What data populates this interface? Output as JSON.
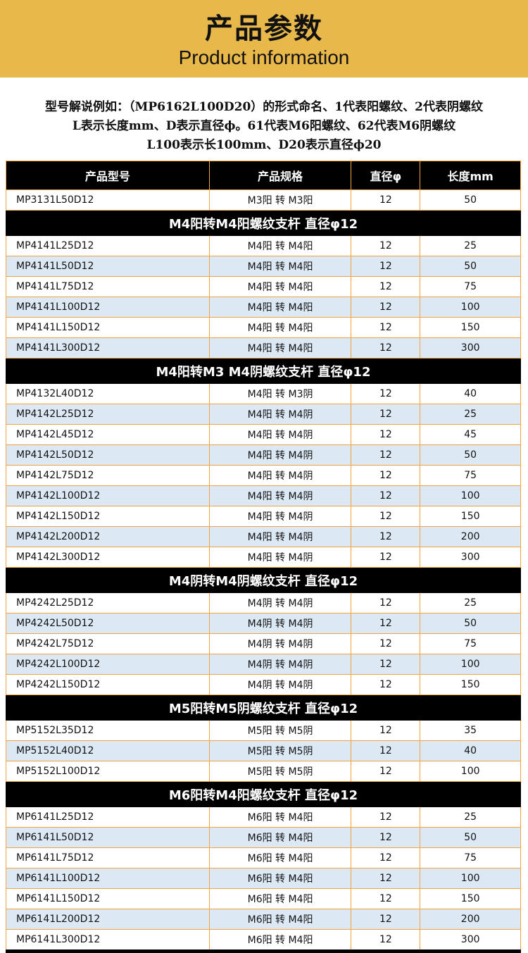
{
  "header": {
    "title": "产品参数",
    "subtitle": "Product information"
  },
  "description": [
    "型号解说例如：（MP6162L100D20）的形式命名、1代表阳螺纹、2代表阴螺纹",
    "L表示长度mm、D表示直径ϕ。61代表M6阳螺纹、62代表M6阴螺纹",
    "L100表示长100mm、D20表示直径ϕ20"
  ],
  "colors": {
    "banner": "#E8B94A",
    "grid": "#F2A33A",
    "alt_row": "#DCE9F5",
    "section": "#000000"
  },
  "table": {
    "columns": [
      "产品型号",
      "产品规格",
      "直径φ",
      "长度mm"
    ],
    "groups": [
      {
        "title": "",
        "rows": [
          [
            "MP3131L50D12",
            "M3阳 转 M3阳",
            "12",
            "50"
          ]
        ]
      },
      {
        "title": "M4阳转M4阳螺纹支杆  直径φ12",
        "rows": [
          [
            "MP4141L25D12",
            "M4阳 转 M4阳",
            "12",
            "25"
          ],
          [
            "MP4141L50D12",
            "M4阳 转 M4阳",
            "12",
            "50"
          ],
          [
            "MP4141L75D12",
            "M4阳 转 M4阳",
            "12",
            "75"
          ],
          [
            "MP4141L100D12",
            "M4阳 转 M4阳",
            "12",
            "100"
          ],
          [
            "MP4141L150D12",
            "M4阳 转 M4阳",
            "12",
            "150"
          ],
          [
            "MP4141L300D12",
            "M4阳 转 M4阳",
            "12",
            "300"
          ]
        ]
      },
      {
        "title": "M4阳转M3  M4阴螺纹支杆  直径φ12",
        "rows": [
          [
            "MP4132L40D12",
            "M4阳 转 M3阴",
            "12",
            "40"
          ],
          [
            "MP4142L25D12",
            "M4阳 转 M4阴",
            "12",
            "25"
          ],
          [
            "MP4142L45D12",
            "M4阳 转 M4阴",
            "12",
            "45"
          ],
          [
            "MP4142L50D12",
            "M4阳 转 M4阴",
            "12",
            "50"
          ],
          [
            "MP4142L75D12",
            "M4阳 转 M4阴",
            "12",
            "75"
          ],
          [
            "MP4142L100D12",
            "M4阳 转 M4阴",
            "12",
            "100"
          ],
          [
            "MP4142L150D12",
            "M4阳 转 M4阴",
            "12",
            "150"
          ],
          [
            "MP4142L200D12",
            "M4阳 转 M4阴",
            "12",
            "200"
          ],
          [
            "MP4142L300D12",
            "M4阳 转 M4阴",
            "12",
            "300"
          ]
        ]
      },
      {
        "title": "M4阴转M4阴螺纹支杆  直径φ12",
        "rows": [
          [
            "MP4242L25D12",
            "M4阴 转 M4阴",
            "12",
            "25"
          ],
          [
            "MP4242L50D12",
            "M4阴 转 M4阴",
            "12",
            "50"
          ],
          [
            "MP4242L75D12",
            "M4阴 转 M4阴",
            "12",
            "75"
          ],
          [
            "MP4242L100D12",
            "M4阴 转 M4阴",
            "12",
            "100"
          ],
          [
            "MP4242L150D12",
            "M4阴 转 M4阴",
            "12",
            "150"
          ]
        ]
      },
      {
        "title": "M5阳转M5阴螺纹支杆  直径φ12",
        "rows": [
          [
            "MP5152L35D12",
            "M5阳 转 M5阴",
            "12",
            "35"
          ],
          [
            "MP5152L40D12",
            "M5阳 转 M5阴",
            "12",
            "40"
          ],
          [
            "MP5152L100D12",
            "M5阳 转 M5阴",
            "12",
            "100"
          ]
        ]
      },
      {
        "title": "M6阳转M4阳螺纹支杆  直径φ12",
        "rows": [
          [
            "MP6141L25D12",
            "M6阳 转 M4阳",
            "12",
            "25"
          ],
          [
            "MP6141L50D12",
            "M6阳 转 M4阳",
            "12",
            "50"
          ],
          [
            "MP6141L75D12",
            "M6阳 转 M4阳",
            "12",
            "75"
          ],
          [
            "MP6141L100D12",
            "M6阳 转 M4阳",
            "12",
            "100"
          ],
          [
            "MP6141L150D12",
            "M6阳 转 M4阳",
            "12",
            "150"
          ],
          [
            "MP6141L200D12",
            "M6阳 转 M4阳",
            "12",
            "200"
          ],
          [
            "MP6141L300D12",
            "M6阳 转 M4阳",
            "12",
            "300"
          ]
        ]
      }
    ]
  }
}
